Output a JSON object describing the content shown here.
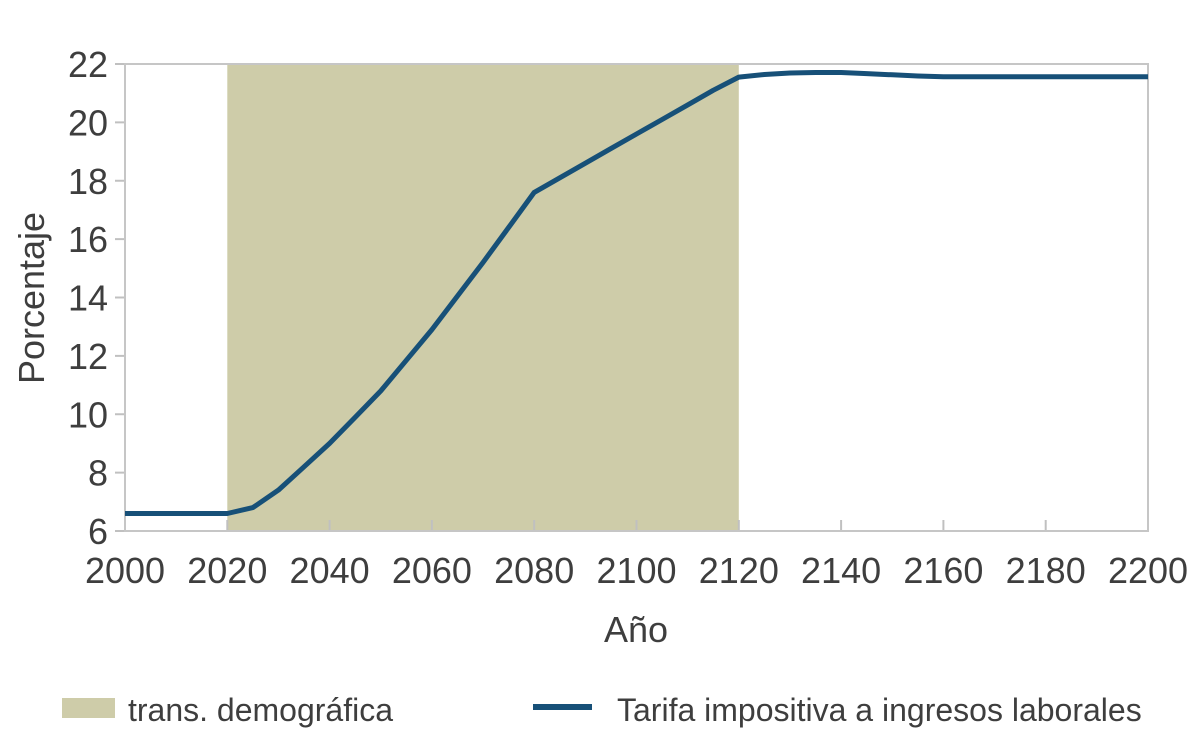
{
  "chart_data": {
    "type": "line",
    "title": "",
    "xlabel": "Año",
    "ylabel": "Porcentaje",
    "xlim": [
      2000,
      2200
    ],
    "ylim": [
      6,
      22
    ],
    "xticks": [
      2000,
      2020,
      2040,
      2060,
      2080,
      2100,
      2120,
      2140,
      2160,
      2180,
      2200
    ],
    "yticks": [
      6,
      8,
      10,
      12,
      14,
      16,
      18,
      20,
      22
    ],
    "grid": false,
    "legend_position": "bottom",
    "band": {
      "label": "trans. demográfica",
      "from": 2020,
      "to": 2120,
      "color": "#cecca9"
    },
    "series": [
      {
        "name": "Tarifa impositiva a ingresos laborales",
        "color": "#175078",
        "x": [
          2000,
          2005,
          2010,
          2015,
          2020,
          2025,
          2030,
          2035,
          2040,
          2045,
          2050,
          2055,
          2060,
          2065,
          2070,
          2075,
          2080,
          2085,
          2090,
          2095,
          2100,
          2105,
          2110,
          2115,
          2120,
          2125,
          2130,
          2135,
          2140,
          2145,
          2150,
          2155,
          2160,
          2165,
          2170,
          2175,
          2180,
          2185,
          2190,
          2195,
          2200
        ],
        "y": [
          6.6,
          6.6,
          6.6,
          6.6,
          6.6,
          6.8,
          7.4,
          8.2,
          9.0,
          9.9,
          10.8,
          11.85,
          12.9,
          14.05,
          15.2,
          16.4,
          17.6,
          18.1,
          18.6,
          19.1,
          19.6,
          20.1,
          20.6,
          21.1,
          21.55,
          21.64,
          21.69,
          21.71,
          21.71,
          21.67,
          21.63,
          21.59,
          21.56,
          21.56,
          21.56,
          21.56,
          21.56,
          21.56,
          21.56,
          21.56,
          21.56
        ]
      }
    ]
  }
}
